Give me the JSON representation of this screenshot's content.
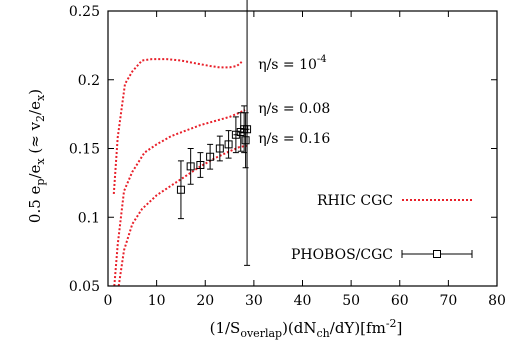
{
  "chart_data": {
    "type": "line",
    "xlabel": "(1/S_overlap)(dN_ch/dY)[fm^-2]",
    "ylabel": "0.5 e_p/e_x (≈ v_2/e_x)",
    "xlim": [
      0,
      80
    ],
    "ylim": [
      0.05,
      0.25
    ],
    "xticks": [
      0,
      10,
      20,
      30,
      40,
      50,
      60,
      70,
      80
    ],
    "yticks": [
      0.05,
      0.1,
      0.15,
      0.2,
      0.25
    ],
    "grid": false,
    "legend_position": "right",
    "series": [
      {
        "name": "RHIC CGC",
        "style": "dotted",
        "color": "#e8202a",
        "curves": [
          {
            "label": "η/s = 10^-4",
            "x": [
              1.2,
              2.0,
              3.5,
              5.0,
              7.0,
              9.0,
              12.0,
              15.0,
              18.0,
              21.0,
              23.0,
              25.0,
              26.5,
              27.5
            ],
            "y": [
              0.117,
              0.158,
              0.197,
              0.206,
              0.214,
              0.215,
              0.215,
              0.214,
              0.212,
              0.21,
              0.209,
              0.209,
              0.21,
              0.213
            ]
          },
          {
            "label": "η/s = 0.08",
            "x": [
              1.3,
              2.0,
              3.3,
              5.0,
              7.5,
              10.0,
              13.0,
              16.0,
              19.0,
              22.0,
              25.0,
              27.0,
              28.2
            ],
            "y": [
              0.05,
              0.08,
              0.119,
              0.133,
              0.147,
              0.153,
              0.159,
              0.163,
              0.167,
              0.17,
              0.173,
              0.176,
              0.178
            ]
          },
          {
            "label": "η/s = 0.16",
            "x": [
              2.2,
              3.3,
              5.0,
              7.0,
              10.0,
              13.0,
              16.0,
              19.0,
              22.0,
              25.0,
              27.0,
              28.5
            ],
            "y": [
              0.05,
              0.076,
              0.095,
              0.106,
              0.116,
              0.123,
              0.13,
              0.137,
              0.143,
              0.148,
              0.151,
              0.152
            ]
          }
        ]
      },
      {
        "name": "PHOBOS/CGC",
        "style": "points-errorbars",
        "color": "#000000",
        "marker": "open-square",
        "points": [
          {
            "x": 15.0,
            "y": 0.12,
            "yerr": 0.021,
            "xerr": 0.0
          },
          {
            "x": 17.0,
            "y": 0.137,
            "yerr": 0.013,
            "xerr": 0.0
          },
          {
            "x": 19.0,
            "y": 0.138,
            "yerr": 0.009,
            "xerr": 0.0
          },
          {
            "x": 21.0,
            "y": 0.144,
            "yerr": 0.009,
            "xerr": 0.0
          },
          {
            "x": 23.0,
            "y": 0.15,
            "yerr": 0.009,
            "xerr": 0.0
          },
          {
            "x": 24.8,
            "y": 0.153,
            "yerr": 0.01,
            "xerr": 0.0
          },
          {
            "x": 26.3,
            "y": 0.16,
            "yerr": 0.013,
            "xerr": 0.5
          },
          {
            "x": 27.3,
            "y": 0.162,
            "yerr": 0.014,
            "xerr": 0.6
          },
          {
            "x": 28.0,
            "y": 0.164,
            "yerr": 0.017,
            "xerr": 0.8
          },
          {
            "x": 28.6,
            "y": 0.164,
            "yerr": 0.099,
            "xerr": 0.5
          },
          {
            "x": 28.3,
            "y": 0.156,
            "yerr": 0.02,
            "xerr": 0.0
          }
        ]
      }
    ],
    "annotations": [
      {
        "text": "η/s = 10",
        "sup": "-4",
        "x": 35,
        "y": 0.208
      },
      {
        "text": "η/s = 0.08",
        "sup": "",
        "x": 35,
        "y": 0.176
      },
      {
        "text": "η/s = 0.16",
        "sup": "",
        "x": 35,
        "y": 0.154
      }
    ],
    "legend": [
      {
        "label": "RHIC CGC",
        "series": 0
      },
      {
        "label": "PHOBOS/CGC",
        "series": 1
      }
    ]
  }
}
